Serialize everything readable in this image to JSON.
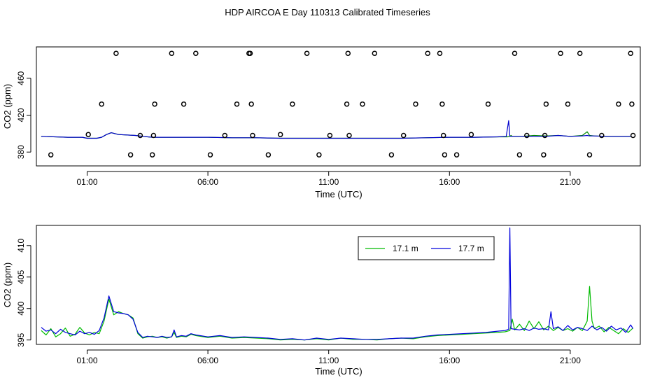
{
  "title": "HDP AIRCOA E  Day 110313  Calibrated Timeseries",
  "chart_data": [
    {
      "type": "line",
      "panel": "top",
      "xlabel": "Time (UTC)",
      "ylabel": "CO2 (ppm)",
      "x_unit": "hours UTC",
      "xlim": [
        -1.1,
        23.9
      ],
      "ylim": [
        365,
        494
      ],
      "x_ticks": [
        1,
        6,
        11,
        16,
        21
      ],
      "x_tick_labels": [
        "01:00",
        "06:00",
        "11:00",
        "16:00",
        "21:00"
      ],
      "y_ticks": [
        380,
        420,
        460
      ],
      "y_tick_labels": [
        "380",
        "420",
        "460"
      ],
      "series": [
        {
          "color": "#008800",
          "x": [
            -0.9,
            0.2,
            0.8,
            1.0,
            1.4,
            1.6,
            1.8,
            2.0,
            2.3,
            3.0,
            3.3,
            3.7,
            4.5,
            5.0,
            6.0,
            7.0,
            8.0,
            9.0,
            10.0,
            11.0,
            12.0,
            13.0,
            14.0,
            15.0,
            16.0,
            17.0,
            18.0,
            18.4,
            18.5,
            18.55,
            18.6,
            18.7,
            19.0,
            19.5,
            20.0,
            20.5,
            21.0,
            21.5,
            21.7,
            21.8,
            22.0,
            22.5,
            23.0,
            23.5
          ],
          "y": [
            397,
            396,
            396,
            395,
            395,
            396,
            399,
            401,
            399,
            398,
            397,
            396,
            396,
            396,
            396,
            395.5,
            395.5,
            395,
            395,
            395,
            395,
            395,
            395,
            395.5,
            396,
            396,
            396.5,
            396.5,
            397,
            398,
            397,
            397,
            397,
            398,
            397.5,
            398,
            397,
            398,
            402,
            398,
            397.5,
            397,
            397,
            397
          ]
        },
        {
          "color": "#0000cc",
          "x": [
            -0.9,
            0.2,
            0.8,
            1.0,
            1.4,
            1.6,
            1.8,
            2.0,
            2.3,
            3.0,
            3.3,
            3.7,
            4.5,
            5.0,
            6.0,
            7.0,
            8.0,
            9.0,
            10.0,
            11.0,
            12.0,
            13.0,
            14.0,
            15.0,
            16.0,
            17.0,
            18.0,
            18.35,
            18.45,
            18.5,
            18.6,
            18.7,
            19.0,
            19.5,
            20.0,
            20.5,
            21.0,
            21.5,
            21.7,
            21.8,
            22.0,
            22.5,
            23.0,
            23.5
          ],
          "y": [
            397,
            396,
            396,
            395,
            395,
            396,
            399,
            401,
            399,
            398,
            397,
            396,
            396,
            396,
            396,
            395.5,
            395.5,
            395,
            395,
            395,
            395,
            395,
            395,
            395.5,
            396,
            396,
            396.5,
            397,
            414,
            397,
            397,
            397,
            397,
            397,
            397,
            398,
            397,
            397.5,
            398,
            397.5,
            397.5,
            397,
            397,
            397
          ]
        }
      ],
      "points": {
        "marker": "open-circle",
        "x": [
          -0.5,
          1.05,
          1.6,
          2.2,
          2.8,
          3.2,
          3.7,
          3.75,
          3.8,
          4.5,
          5.0,
          5.5,
          6.1,
          6.7,
          7.2,
          7.7,
          7.75,
          7.8,
          7.85,
          8.5,
          9.0,
          9.5,
          10.1,
          10.6,
          11.05,
          11.75,
          11.8,
          11.85,
          12.4,
          12.9,
          13.6,
          14.1,
          14.6,
          15.1,
          15.6,
          15.7,
          15.75,
          15.8,
          16.3,
          16.9,
          17.6,
          18.7,
          18.9,
          19.2,
          19.9,
          19.95,
          20.0,
          20.6,
          20.9,
          21.4,
          21.8,
          22.3,
          23.0,
          23.5,
          23.55,
          23.6
        ],
        "y": [
          377,
          399,
          432,
          487,
          377,
          398,
          377,
          398,
          432,
          487,
          432,
          487,
          377,
          398,
          432,
          487,
          487,
          432,
          398,
          377,
          399,
          432,
          487,
          377,
          398,
          432,
          487,
          398,
          432,
          487,
          377,
          398,
          432,
          487,
          487,
          432,
          398,
          377,
          377,
          399,
          432,
          487,
          377,
          398,
          377,
          398,
          432,
          487,
          432,
          487,
          377,
          398,
          432,
          487,
          432,
          398
        ]
      }
    },
    {
      "type": "line",
      "panel": "bottom",
      "xlabel": "Time (UTC)",
      "ylabel": "CO2 (ppm)",
      "x_unit": "hours UTC",
      "xlim": [
        -1.1,
        23.9
      ],
      "ylim": [
        394.3,
        413.2
      ],
      "x_ticks": [
        1,
        6,
        11,
        16,
        21
      ],
      "x_tick_labels": [
        "01:00",
        "06:00",
        "11:00",
        "16:00",
        "21:00"
      ],
      "y_ticks": [
        395,
        400,
        405,
        410
      ],
      "y_tick_labels": [
        "395",
        "400",
        "405",
        "410"
      ],
      "legend": {
        "position": "top-right",
        "entries": [
          "17.1 m",
          "17.7 m"
        ]
      },
      "series": [
        {
          "name": "17.1 m",
          "color": "#00bb00",
          "x": [
            -0.9,
            -0.7,
            -0.5,
            -0.3,
            -0.1,
            0.1,
            0.3,
            0.5,
            0.7,
            0.9,
            1.1,
            1.3,
            1.5,
            1.7,
            1.9,
            2.1,
            2.3,
            2.5,
            2.7,
            2.9,
            3.1,
            3.3,
            3.5,
            3.7,
            3.9,
            4.1,
            4.3,
            4.5,
            4.6,
            4.7,
            4.9,
            5.1,
            5.3,
            5.5,
            6.0,
            6.5,
            7.0,
            7.5,
            8.0,
            8.5,
            9.0,
            9.5,
            10.0,
            10.5,
            11.0,
            11.5,
            12.0,
            12.5,
            13.0,
            13.5,
            14.0,
            14.5,
            15.0,
            15.5,
            16.0,
            16.5,
            17.0,
            17.5,
            18.0,
            18.3,
            18.5,
            18.6,
            18.7,
            18.9,
            19.1,
            19.3,
            19.5,
            19.7,
            19.9,
            20.1,
            20.3,
            20.5,
            20.7,
            20.9,
            21.1,
            21.3,
            21.5,
            21.7,
            21.8,
            21.9,
            22.0,
            22.2,
            22.4,
            22.6,
            22.8,
            23.0,
            23.2,
            23.4,
            23.6
          ],
          "y": [
            396.5,
            395.8,
            396.8,
            395.5,
            396.0,
            396.9,
            395.6,
            395.9,
            397.0,
            396.1,
            395.8,
            396.2,
            396.0,
            398.0,
            401.5,
            399.0,
            399.5,
            399.2,
            399.0,
            398.5,
            396.0,
            395.3,
            395.5,
            395.6,
            395.4,
            395.5,
            395.3,
            395.5,
            396.2,
            395.4,
            395.6,
            395.5,
            395.9,
            395.7,
            395.4,
            395.6,
            395.3,
            395.4,
            395.3,
            395.2,
            395.0,
            395.1,
            395.0,
            395.2,
            395.0,
            395.3,
            395.1,
            395.1,
            395.0,
            395.2,
            395.3,
            395.2,
            395.5,
            395.7,
            395.8,
            395.9,
            396.0,
            396.1,
            396.2,
            396.3,
            396.5,
            398.3,
            396.6,
            397.5,
            396.5,
            398.0,
            396.8,
            397.9,
            396.6,
            397.2,
            396.5,
            397.0,
            396.5,
            396.8,
            396.4,
            397.0,
            396.5,
            398.0,
            403.5,
            398.0,
            396.8,
            397.2,
            396.3,
            397.0,
            396.5,
            396.0,
            396.8,
            396.2,
            396.9
          ]
        },
        {
          "name": "17.7 m",
          "color": "#0000dd",
          "x": [
            -0.9,
            -0.7,
            -0.5,
            -0.3,
            -0.1,
            0.1,
            0.3,
            0.5,
            0.7,
            0.9,
            1.1,
            1.3,
            1.5,
            1.7,
            1.9,
            2.1,
            2.3,
            2.5,
            2.7,
            2.9,
            3.1,
            3.3,
            3.5,
            3.7,
            3.9,
            4.1,
            4.3,
            4.5,
            4.6,
            4.7,
            4.9,
            5.1,
            5.3,
            5.5,
            6.0,
            6.5,
            7.0,
            7.5,
            8.0,
            8.5,
            9.0,
            9.5,
            10.0,
            10.5,
            11.0,
            11.5,
            12.0,
            12.5,
            13.0,
            13.5,
            14.0,
            14.5,
            15.0,
            15.5,
            16.0,
            16.5,
            17.0,
            17.5,
            18.0,
            18.3,
            18.45,
            18.5,
            18.55,
            18.7,
            18.9,
            19.1,
            19.3,
            19.5,
            19.7,
            19.9,
            20.1,
            20.2,
            20.3,
            20.5,
            20.7,
            20.9,
            21.1,
            21.3,
            21.5,
            21.7,
            21.9,
            22.1,
            22.3,
            22.5,
            22.7,
            22.9,
            23.1,
            23.3,
            23.5,
            23.6
          ],
          "y": [
            397.0,
            396.4,
            396.6,
            396.0,
            396.7,
            396.2,
            396.0,
            395.8,
            396.4,
            396.0,
            396.2,
            395.9,
            396.5,
            398.5,
            402.0,
            399.5,
            399.3,
            399.2,
            399.0,
            398.3,
            396.2,
            395.4,
            395.6,
            395.5,
            395.4,
            395.6,
            395.4,
            395.5,
            396.6,
            395.5,
            395.7,
            395.6,
            396.0,
            395.8,
            395.5,
            395.7,
            395.4,
            395.5,
            395.4,
            395.3,
            395.1,
            395.2,
            395.0,
            395.3,
            395.1,
            395.3,
            395.2,
            395.1,
            395.1,
            395.2,
            395.3,
            395.3,
            395.6,
            395.8,
            395.9,
            396.0,
            396.1,
            396.2,
            396.4,
            396.5,
            396.7,
            412.8,
            396.8,
            396.7,
            396.6,
            396.8,
            396.5,
            396.9,
            396.7,
            396.8,
            396.6,
            399.5,
            396.8,
            397.1,
            396.5,
            397.3,
            396.6,
            397.0,
            396.8,
            396.5,
            397.2,
            396.6,
            397.0,
            396.4,
            397.2,
            396.6,
            396.9,
            396.2,
            397.4,
            396.8
          ]
        }
      ]
    }
  ]
}
